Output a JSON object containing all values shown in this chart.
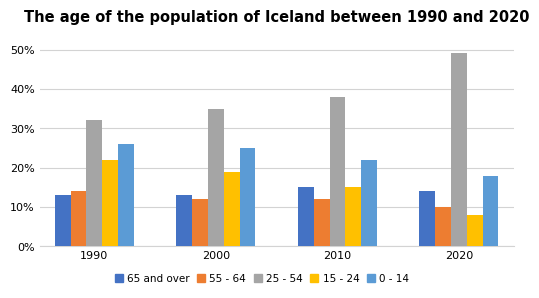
{
  "title": "The age of the population of Iceland between 1990 and 2020",
  "years": [
    1990,
    2000,
    2010,
    2020
  ],
  "categories": [
    "65 and over",
    "55 - 64",
    "25 - 54",
    "15 - 24",
    "0 - 14"
  ],
  "colors": [
    "#4472C4",
    "#ED7D31",
    "#A5A5A5",
    "#FFC000",
    "#5B9BD5"
  ],
  "values": {
    "65 and over": [
      13,
      13,
      15,
      14
    ],
    "55 - 64": [
      14,
      12,
      12,
      10
    ],
    "25 - 54": [
      32,
      35,
      38,
      49
    ],
    "15 - 24": [
      22,
      19,
      15,
      8
    ],
    "0 - 14": [
      26,
      25,
      22,
      18
    ]
  },
  "ylim": [
    0,
    55
  ],
  "yticks": [
    0,
    10,
    20,
    30,
    40,
    50
  ],
  "ytick_labels": [
    "0%",
    "10%",
    "20%",
    "30%",
    "40%",
    "50%"
  ],
  "bar_width": 0.13,
  "background_color": "#FFFFFF",
  "grid_color": "#D3D3D3",
  "title_fontsize": 10.5,
  "tick_fontsize": 8,
  "legend_fontsize": 7.5
}
